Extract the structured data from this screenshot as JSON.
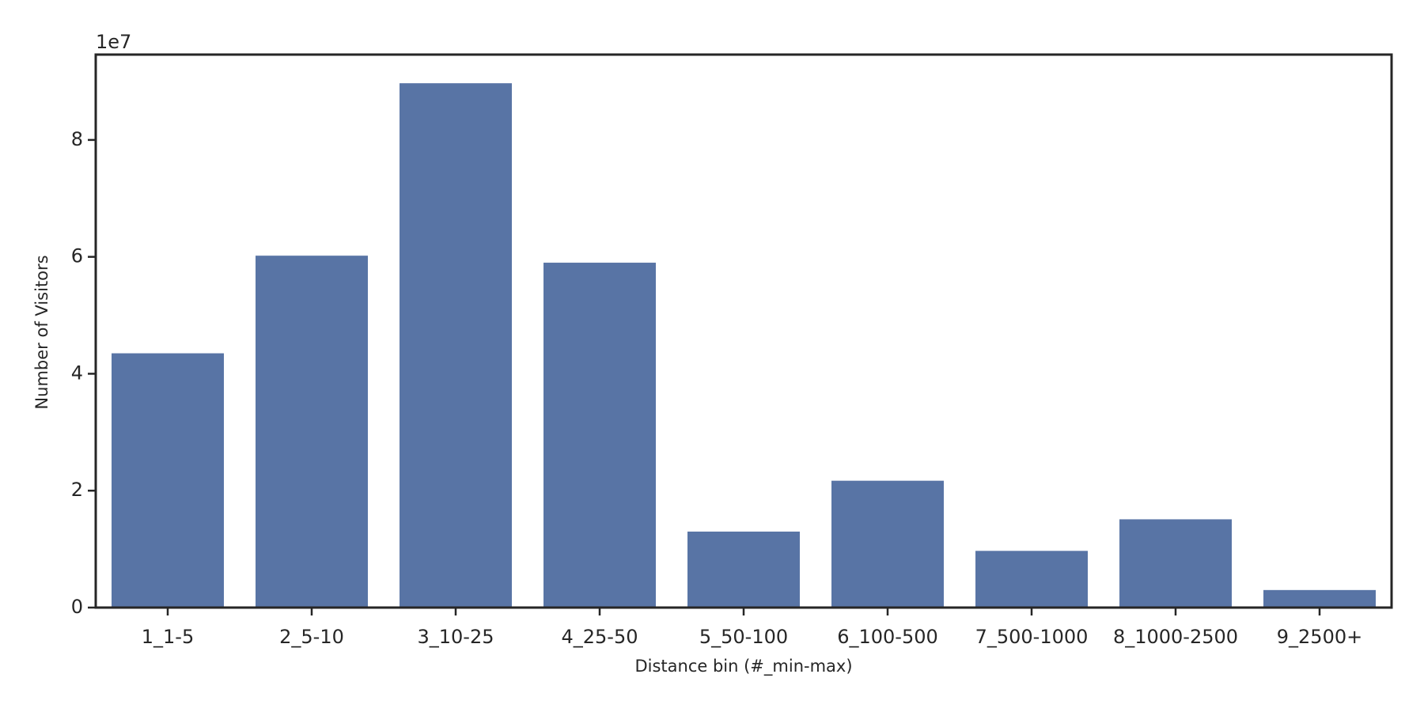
{
  "chart_data": {
    "type": "bar",
    "offset_label": "1e7",
    "x_label": "Distance bin (#_min-max)",
    "y_label": "Number of Visitors",
    "categories": [
      "1_1-5",
      "2_5-10",
      "3_10-25",
      "4_25-50",
      "5_50-100",
      "6_100-500",
      "7_500-1000",
      "8_1000-2500",
      "9_2500+"
    ],
    "values": [
      4.35,
      6.02,
      8.97,
      5.9,
      1.3,
      2.17,
      0.97,
      1.51,
      0.3
    ],
    "color": "#5874a5",
    "ylim": [
      0,
      9.46
    ],
    "yticks": [
      0,
      2,
      4,
      6,
      8
    ],
    "grid": false
  }
}
